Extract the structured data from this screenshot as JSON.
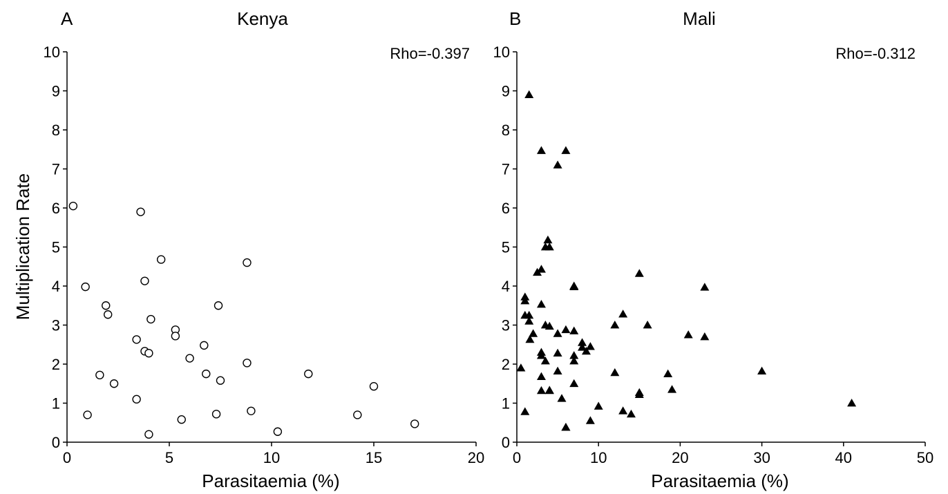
{
  "chart_data": [
    {
      "type": "scatter",
      "panel_label": "A",
      "title": "Kenya",
      "annotation": "Rho=-0.397",
      "xlabel": "Parasitaemia (%)",
      "ylabel": "Multiplication Rate",
      "xlim": [
        0,
        20
      ],
      "ylim": [
        0,
        10
      ],
      "xticks": [
        0,
        5,
        10,
        15,
        20
      ],
      "yticks": [
        0,
        1,
        2,
        3,
        4,
        5,
        6,
        7,
        8,
        9,
        10
      ],
      "marker": "open-circle",
      "grid": false,
      "x": [
        0.3,
        0.9,
        1.0,
        1.6,
        1.9,
        2.0,
        2.3,
        3.4,
        3.4,
        3.6,
        3.8,
        3.8,
        4.0,
        4.0,
        4.1,
        4.6,
        5.3,
        5.3,
        5.6,
        6.0,
        6.7,
        6.8,
        7.3,
        7.4,
        7.5,
        8.8,
        8.8,
        9.0,
        10.3,
        11.8,
        14.2,
        15.0,
        17.0
      ],
      "y": [
        6.05,
        3.98,
        0.7,
        1.72,
        3.5,
        3.27,
        1.5,
        2.63,
        1.1,
        5.9,
        4.13,
        2.33,
        2.28,
        0.2,
        3.15,
        4.68,
        2.88,
        2.72,
        0.58,
        2.15,
        2.48,
        1.75,
        0.72,
        3.5,
        1.58,
        4.6,
        2.03,
        0.8,
        0.27,
        1.75,
        0.7,
        1.43,
        0.47
      ]
    },
    {
      "type": "scatter",
      "panel_label": "B",
      "title": "Mali",
      "annotation": "Rho=-0.312",
      "xlabel": "Parasitaemia (%)",
      "ylabel": "",
      "xlim": [
        0,
        50
      ],
      "ylim": [
        0,
        10
      ],
      "xticks": [
        0,
        10,
        20,
        30,
        40,
        50
      ],
      "yticks": [
        0,
        1,
        2,
        3,
        4,
        5,
        6,
        7,
        8,
        9,
        10
      ],
      "marker": "filled-triangle",
      "grid": false,
      "x": [
        0.5,
        1.0,
        1.0,
        1.0,
        1.0,
        1.5,
        1.5,
        1.5,
        1.6,
        2.0,
        2.5,
        3.0,
        3.0,
        3.0,
        3.0,
        3.0,
        3.0,
        3.0,
        3.5,
        3.5,
        3.5,
        3.8,
        4.0,
        4.0,
        4.0,
        4.0,
        5.0,
        5.0,
        5.0,
        5.0,
        5.5,
        6.0,
        6.0,
        6.0,
        6.0,
        7.0,
        7.0,
        7.0,
        7.0,
        7.0,
        7.0,
        8.0,
        8.0,
        8.5,
        9.0,
        9.0,
        10.0,
        12.0,
        12.0,
        13.0,
        13.0,
        14.0,
        15.0,
        15.0,
        15.0,
        16.0,
        18.5,
        19.0,
        21.0,
        23.0,
        23.0,
        30.0,
        41.0
      ],
      "y": [
        1.9,
        3.72,
        3.62,
        3.25,
        0.78,
        8.9,
        3.25,
        3.1,
        2.63,
        2.78,
        4.35,
        7.47,
        4.43,
        3.53,
        2.3,
        2.22,
        1.68,
        1.32,
        5.0,
        3.0,
        2.08,
        5.18,
        5.0,
        2.97,
        1.33,
        1.32,
        7.1,
        2.78,
        2.28,
        1.82,
        1.12,
        7.47,
        2.88,
        0.38,
        0.38,
        4.0,
        3.98,
        2.85,
        2.22,
        2.08,
        1.5,
        2.55,
        2.43,
        2.33,
        2.45,
        0.55,
        0.92,
        3.0,
        1.78,
        3.28,
        0.8,
        0.72,
        4.32,
        1.27,
        1.22,
        3.0,
        1.75,
        1.35,
        2.75,
        3.97,
        2.7,
        1.82,
        1.0
      ]
    }
  ]
}
